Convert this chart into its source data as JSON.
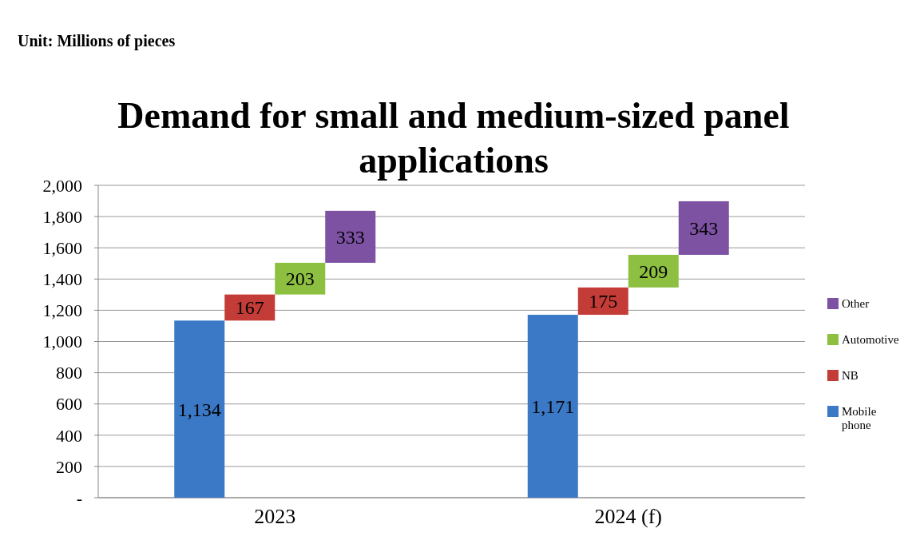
{
  "chart_data": {
    "type": "bar",
    "title": "Demand for small and medium-sized panel applications",
    "annotations": [
      "Unit: Millions of pieces"
    ],
    "categories": [
      "2023",
      "2024 (f)"
    ],
    "series": [
      {
        "name": "Mobile phone",
        "color": "#3b78c6",
        "values": [
          1134,
          1171
        ],
        "value_labels": [
          "1,134",
          "1,171"
        ],
        "base": [
          0,
          0
        ]
      },
      {
        "name": "NB",
        "color": "#c43c37",
        "values": [
          167,
          175
        ],
        "value_labels": [
          "167",
          "175"
        ],
        "base": [
          1134,
          1171
        ]
      },
      {
        "name": "Automotive",
        "color": "#8dbf41",
        "values": [
          203,
          209
        ],
        "value_labels": [
          "203",
          "209"
        ],
        "base": [
          1301,
          1346
        ]
      },
      {
        "name": "Other",
        "color": "#7d52a3",
        "values": [
          333,
          343
        ],
        "value_labels": [
          "333",
          "343"
        ],
        "base": [
          1504,
          1555
        ]
      }
    ],
    "ylim": [
      0,
      2000
    ],
    "yticks": [
      {
        "value": 0,
        "label": "-"
      },
      200,
      400,
      600,
      800,
      {
        "value": 1000,
        "label": "1,000"
      },
      {
        "value": 1200,
        "label": "1,200"
      },
      {
        "value": 1400,
        "label": "1,400"
      },
      {
        "value": 1600,
        "label": "1,600"
      },
      {
        "value": 1800,
        "label": "1,800"
      },
      {
        "value": 2000,
        "label": "2,000"
      }
    ],
    "grid": "y",
    "legend": "right"
  }
}
